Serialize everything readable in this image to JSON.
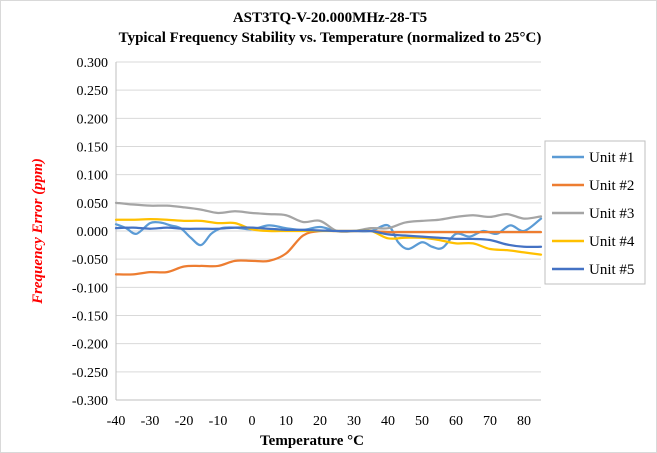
{
  "chart_data": {
    "type": "line",
    "title": "AST3TQ-V-20.000MHz-28-T5",
    "subtitle": "Typical Frequency Stability vs. Temperature (normalized to 25°C)",
    "xlabel": "Temperature °C",
    "ylabel": "Frequency Error (ppm)",
    "xlim": [
      -40,
      85
    ],
    "ylim": [
      -0.3,
      0.3
    ],
    "x_ticks": [
      -40,
      -30,
      -20,
      -10,
      0,
      10,
      20,
      30,
      40,
      50,
      60,
      70,
      80
    ],
    "x_tick_labels": [
      "-40",
      "-30",
      "-20",
      "-10",
      "0",
      "10",
      "20",
      "30",
      "40",
      "50",
      "60",
      "70",
      "80"
    ],
    "y_ticks": [
      0.3,
      0.25,
      0.2,
      0.15,
      0.1,
      0.05,
      0.0,
      -0.05,
      -0.1,
      -0.15,
      -0.2,
      -0.25,
      -0.3
    ],
    "y_tick_labels": [
      "0.300",
      "0.250",
      "0.200",
      "0.150",
      "0.100",
      "0.050",
      "0.000",
      "-0.050",
      "-0.100",
      "-0.150",
      "-0.200",
      "-0.250",
      "-0.300"
    ],
    "grid": "horizontal",
    "legend_position": "right",
    "series": [
      {
        "name": "Unit #1",
        "color": "#5b9bd5",
        "x": [
          -40,
          -37,
          -34,
          -30,
          -27,
          -24,
          -21,
          -18,
          -15,
          -12,
          -9,
          -5,
          0,
          5,
          10,
          15,
          20,
          25,
          30,
          35,
          40,
          43,
          46,
          50,
          53,
          56,
          60,
          64,
          68,
          72,
          76,
          80,
          85
        ],
        "y": [
          0.012,
          0.005,
          -0.005,
          0.014,
          0.015,
          0.01,
          0.005,
          -0.012,
          -0.025,
          -0.005,
          0.005,
          0.006,
          0.003,
          0.01,
          0.005,
          0.002,
          0.007,
          0.0,
          0.0,
          0.0,
          0.01,
          -0.02,
          -0.032,
          -0.02,
          -0.028,
          -0.03,
          -0.005,
          -0.01,
          0.0,
          -0.005,
          0.01,
          0.0,
          0.022
        ]
      },
      {
        "name": "Unit #2",
        "color": "#ed7d31",
        "x": [
          -40,
          -35,
          -30,
          -25,
          -20,
          -15,
          -10,
          -5,
          0,
          5,
          10,
          15,
          20,
          25,
          30,
          35,
          40,
          45,
          50,
          55,
          60,
          65,
          70,
          75,
          80,
          85
        ],
        "y": [
          -0.077,
          -0.077,
          -0.073,
          -0.073,
          -0.063,
          -0.062,
          -0.062,
          -0.053,
          -0.053,
          -0.053,
          -0.04,
          -0.008,
          0.0,
          0.0,
          0.0,
          0.0,
          -0.002,
          -0.002,
          -0.002,
          -0.002,
          -0.002,
          -0.002,
          -0.002,
          -0.002,
          -0.002,
          -0.002
        ]
      },
      {
        "name": "Unit #3",
        "color": "#a5a5a5",
        "x": [
          -40,
          -35,
          -30,
          -25,
          -20,
          -15,
          -10,
          -5,
          0,
          5,
          10,
          15,
          20,
          25,
          30,
          35,
          40,
          45,
          50,
          55,
          60,
          65,
          70,
          75,
          80,
          85
        ],
        "y": [
          0.05,
          0.047,
          0.045,
          0.045,
          0.042,
          0.038,
          0.032,
          0.035,
          0.032,
          0.03,
          0.028,
          0.016,
          0.018,
          0.0,
          0.0,
          0.005,
          0.005,
          0.015,
          0.018,
          0.02,
          0.025,
          0.028,
          0.025,
          0.03,
          0.022,
          0.026
        ]
      },
      {
        "name": "Unit #4",
        "color": "#ffc000",
        "x": [
          -40,
          -35,
          -30,
          -25,
          -20,
          -15,
          -10,
          -5,
          0,
          5,
          10,
          15,
          20,
          25,
          30,
          35,
          40,
          45,
          50,
          55,
          60,
          65,
          70,
          75,
          80,
          85
        ],
        "y": [
          0.02,
          0.02,
          0.021,
          0.02,
          0.018,
          0.018,
          0.014,
          0.014,
          0.003,
          0.0,
          0.0,
          0.0,
          0.0,
          0.0,
          0.0,
          0.0,
          -0.013,
          -0.012,
          -0.012,
          -0.016,
          -0.022,
          -0.022,
          -0.032,
          -0.034,
          -0.038,
          -0.042
        ]
      },
      {
        "name": "Unit #5",
        "color": "#4472c4",
        "x": [
          -40,
          -35,
          -30,
          -25,
          -20,
          -15,
          -10,
          -5,
          0,
          5,
          10,
          15,
          20,
          25,
          30,
          35,
          40,
          45,
          50,
          55,
          60,
          65,
          70,
          75,
          80,
          85
        ],
        "y": [
          0.005,
          0.006,
          0.004,
          0.006,
          0.004,
          0.004,
          0.004,
          0.006,
          0.006,
          0.004,
          0.002,
          0.002,
          0.001,
          0.0,
          0.0,
          0.0,
          -0.006,
          -0.008,
          -0.01,
          -0.012,
          -0.014,
          -0.014,
          -0.016,
          -0.024,
          -0.028,
          -0.028
        ]
      }
    ]
  }
}
